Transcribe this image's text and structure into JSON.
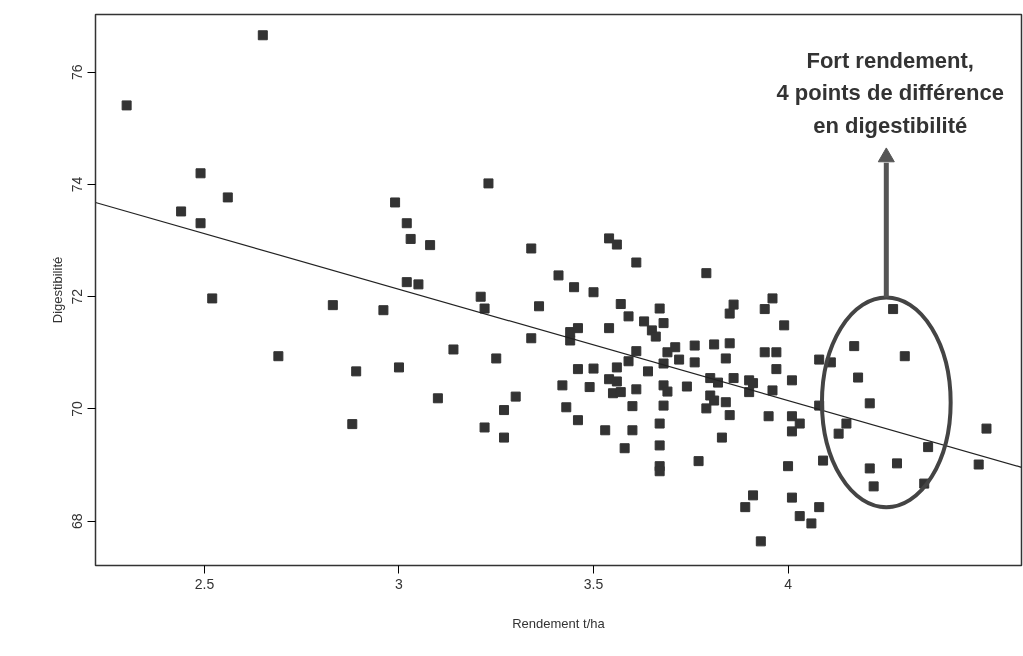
{
  "chart_data": {
    "type": "scatter",
    "xlabel": "Rendement t/ha",
    "ylabel": "Digestibilité",
    "xlim": [
      2.22,
      4.6
    ],
    "ylim": [
      67.21,
      77.03
    ],
    "xticks": [
      2.5,
      3.0,
      3.5,
      4.0
    ],
    "yticks": [
      68,
      70,
      72,
      74,
      76
    ],
    "grid": false,
    "annotations": [
      "Fort rendement,\n4 points de différence\nen digestibilité"
    ],
    "series": [
      {
        "color": "#333333",
        "marker": "square",
        "x": [
          2.3,
          2.65,
          2.49,
          2.56,
          2.44,
          2.49,
          2.99,
          3.02,
          3.03,
          3.02,
          3.05,
          2.52,
          2.83,
          2.96,
          2.69,
          2.89,
          3.0,
          2.88,
          3.08,
          3.23,
          3.34,
          3.54,
          3.56,
          3.61,
          3.41,
          3.45,
          3.5,
          3.79,
          3.21,
          3.22,
          3.36,
          3.57,
          3.59,
          3.67,
          3.68,
          3.63,
          3.65,
          3.66,
          3.44,
          3.46,
          3.44,
          3.54,
          3.34,
          3.14,
          3.25,
          3.61,
          3.59,
          3.64,
          3.68,
          3.69,
          3.71,
          3.72,
          3.76,
          3.76,
          3.81,
          3.46,
          3.5,
          3.56,
          3.54,
          3.56,
          3.8,
          3.42,
          3.49,
          3.61,
          3.68,
          3.69,
          3.74,
          3.55,
          3.57,
          3.8,
          3.1,
          3.3,
          3.27,
          3.22,
          3.27,
          3.43,
          3.46,
          3.53,
          3.6,
          3.58,
          3.6,
          3.68,
          3.67,
          3.67,
          3.67,
          3.67,
          3.77,
          3.79,
          3.86,
          3.85,
          3.96,
          3.94,
          3.99,
          3.85,
          3.84,
          3.94,
          3.97,
          3.97,
          4.01,
          3.96,
          4.08,
          4.11,
          4.27,
          4.17,
          4.3,
          4.18,
          3.82,
          3.86,
          3.9,
          3.91,
          3.81,
          3.84,
          3.85,
          3.83,
          3.95,
          4.01,
          4.03,
          4.01,
          3.9,
          4.08,
          4.21,
          4.15,
          4.13,
          4.36,
          4.51,
          4.49,
          4.0,
          4.09,
          4.21,
          4.28,
          4.22,
          4.35,
          3.91,
          3.89,
          4.01,
          4.08,
          4.03,
          4.06,
          3.93
        ],
        "values": [
          75.41,
          76.66,
          74.2,
          73.77,
          73.52,
          73.31,
          73.68,
          73.31,
          73.03,
          72.26,
          72.22,
          71.97,
          71.85,
          71.76,
          70.94,
          70.67,
          70.74,
          69.73,
          72.92,
          74.02,
          72.86,
          73.04,
          72.93,
          72.61,
          72.38,
          72.17,
          72.08,
          72.42,
          72.0,
          71.79,
          71.83,
          71.87,
          71.65,
          71.79,
          71.53,
          71.56,
          71.4,
          71.29,
          71.37,
          71.44,
          71.22,
          71.44,
          71.26,
          71.06,
          70.9,
          71.03,
          70.85,
          70.67,
          70.81,
          71.01,
          71.1,
          70.88,
          71.13,
          70.83,
          71.15,
          70.71,
          70.72,
          70.74,
          70.53,
          70.49,
          70.55,
          70.42,
          70.39,
          70.35,
          70.42,
          70.31,
          70.4,
          70.28,
          70.3,
          70.24,
          70.19,
          70.22,
          69.98,
          69.67,
          69.49,
          70.03,
          69.8,
          69.62,
          69.62,
          69.3,
          70.05,
          70.06,
          69.74,
          69.35,
          68.98,
          68.89,
          69.07,
          70.01,
          71.86,
          71.7,
          71.97,
          71.78,
          71.49,
          71.17,
          70.9,
          71.01,
          71.01,
          70.71,
          70.51,
          70.33,
          70.88,
          70.83,
          71.78,
          71.12,
          70.94,
          70.56,
          70.47,
          70.55,
          70.51,
          70.46,
          70.15,
          70.12,
          69.89,
          69.49,
          69.87,
          69.87,
          69.74,
          69.6,
          70.3,
          70.06,
          70.1,
          69.74,
          69.56,
          69.32,
          69.65,
          69.01,
          68.98,
          69.08,
          68.94,
          69.03,
          68.62,
          68.67,
          68.46,
          68.25,
          68.42,
          68.25,
          68.09,
          67.96,
          67.64
        ]
      },
      {
        "type": "line",
        "color": "#222222",
        "marker": "none",
        "x": [
          2.22,
          4.6
        ],
        "values": [
          73.68,
          68.96
        ]
      }
    ]
  }
}
